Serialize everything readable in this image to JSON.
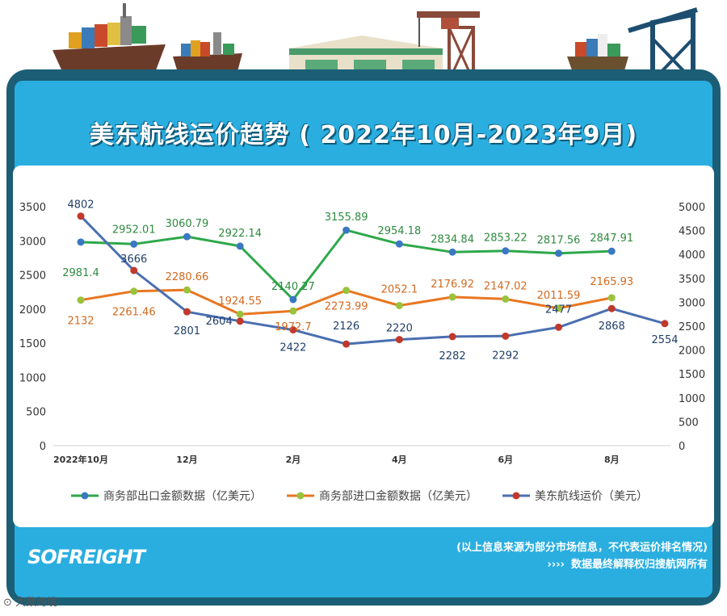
{
  "header": {
    "title": "美东航线运价趋势 ( 2022年10月-2023年9月)"
  },
  "footer": {
    "note_line1": "(以上信息来源为部分市场信息，不代表运价排名情况)",
    "note_line2": "数据最终解释权归搜航网所有",
    "arrows": "››››",
    "logo_text": "SOFREIGHT",
    "credit": "⊙ 大数跨境"
  },
  "colors": {
    "export": "#2ea84a",
    "import": "#e87722",
    "freight": "#4a6fb0",
    "export_marker": "#3a78c2",
    "import_marker": "#9ac23c",
    "freight_marker": "#c0392b"
  },
  "chart_data": {
    "type": "line",
    "x_tick_labels": [
      "2022年10月",
      "12月",
      "2月",
      "4月",
      "6月",
      "8月"
    ],
    "x_tick_positions": [
      0,
      2,
      4,
      6,
      8,
      10
    ],
    "categories": [
      "2022-10",
      "2022-11",
      "2022-12",
      "2023-01",
      "2023-02",
      "2023-03",
      "2023-04",
      "2023-05",
      "2023-06",
      "2023-07",
      "2023-08",
      "2023-09"
    ],
    "y_left": {
      "min": 0,
      "max": 3500,
      "ticks": [
        0,
        500,
        1000,
        1500,
        2000,
        2500,
        3000,
        3500
      ]
    },
    "y_right": {
      "min": 0,
      "max": 5000,
      "ticks": [
        0,
        500,
        1000,
        1500,
        2000,
        2500,
        3000,
        3500,
        4000,
        4500,
        5000
      ]
    },
    "series": [
      {
        "name": "商务部出口金额数据（亿美元）",
        "axis": "left",
        "color_key": "export",
        "values": [
          2981.4,
          2952.01,
          3060.79,
          2922.14,
          2140.27,
          3155.89,
          2954.18,
          2834.84,
          2853.22,
          2817.56,
          2847.91,
          null
        ],
        "labels": [
          "2981.4",
          "2952.01",
          "3060.79",
          "2922.14",
          "2140.27",
          "3155.89",
          "2954.18",
          "2834.84",
          "2853.22",
          "2817.56",
          "2847.91",
          ""
        ]
      },
      {
        "name": "商务部进口金额数据（亿美元）",
        "axis": "left",
        "color_key": "import",
        "values": [
          2132,
          2261.46,
          2280.66,
          1924.55,
          1972.7,
          2273.99,
          2052.1,
          2176.92,
          2147.02,
          2011.59,
          2165.93,
          null
        ],
        "labels": [
          "2132",
          "2261.46",
          "2280.66",
          "1924.55",
          "1972.7",
          "2273.99",
          "2052.1",
          "2176.92",
          "2147.02",
          "2011.59",
          "2165.93",
          ""
        ]
      },
      {
        "name": "美东航线运价（美元）",
        "axis": "right",
        "color_key": "freight",
        "values": [
          4802,
          3666,
          2801,
          2604,
          2422,
          2126,
          2220,
          2282,
          2292,
          2477,
          2868,
          2554
        ],
        "labels": [
          "4802",
          "3666",
          "2801",
          "2604",
          "2422",
          "2126",
          "2220",
          "2282",
          "2292",
          "2477",
          "2868",
          "2554"
        ]
      }
    ],
    "legend_position": "bottom"
  }
}
